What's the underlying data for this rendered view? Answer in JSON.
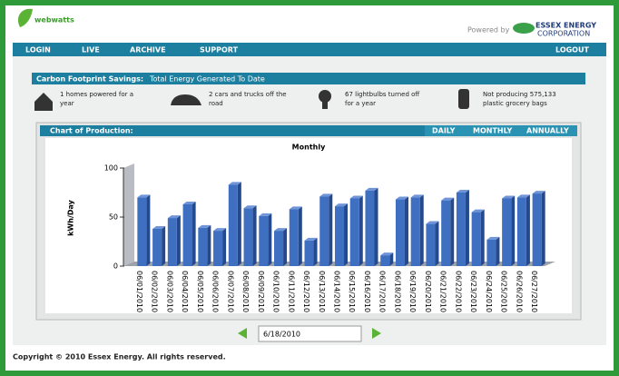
{
  "header": {
    "logo": "webwatts",
    "powered_by": "Powered by",
    "company": "ESSEX ENERGY",
    "company_sub": "CORPORATION"
  },
  "nav": {
    "left": [
      "LOGIN",
      "LIVE",
      "ARCHIVE",
      "SUPPORT"
    ],
    "right": "LOGOUT"
  },
  "savings": {
    "title": "Carbon Footprint Savings:",
    "subtitle": "Total Energy Generated To Date",
    "items": [
      [
        "1 homes powered for a",
        "year"
      ],
      [
        "2 cars and trucks off the",
        "road"
      ],
      [
        "67 lightbulbs turned off",
        "for a year"
      ],
      [
        "Not producing 575,133",
        "plastic grocery bags"
      ]
    ]
  },
  "panel": {
    "title": "Chart of Production:",
    "tabs": [
      "DAILY",
      "MONTHLY",
      "ANNUALLY"
    ],
    "date": "6/18/2010"
  },
  "chart_data": {
    "type": "bar",
    "title": "Monthly",
    "y_label": "kWh/Day",
    "color": "#3f6fc0",
    "categories": [
      "06/01/2010",
      "06/02/2010",
      "06/03/2010",
      "06/04/2010",
      "06/05/2010",
      "06/06/2010",
      "06/07/2010",
      "06/08/2010",
      "06/09/2010",
      "06/10/2010",
      "06/11/2010",
      "06/12/2010",
      "06/13/2010",
      "06/14/2010",
      "06/15/2010",
      "06/16/2010",
      "06/17/2010",
      "06/18/2010",
      "06/19/2010",
      "06/20/2010",
      "06/21/2010",
      "06/22/2010",
      "06/23/2010",
      "06/24/2010",
      "06/25/2010",
      "06/26/2010",
      "06/27/2010"
    ],
    "values": [
      70,
      38,
      49,
      63,
      39,
      36,
      83,
      59,
      51,
      36,
      58,
      26,
      71,
      61,
      69,
      77,
      11,
      68,
      70,
      43,
      67,
      75,
      55,
      27,
      69,
      70,
      74
    ],
    "ylim": [
      0,
      100
    ],
    "yticks": [
      0,
      50,
      100
    ]
  },
  "footer": "Copyright © 2010 Essex Energy. All rights reserved."
}
